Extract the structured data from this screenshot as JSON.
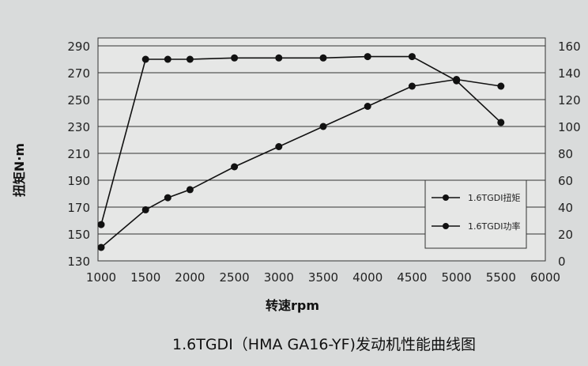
{
  "chart_data": {
    "type": "line",
    "title": "1.6TGDI（HMA GA16-YF)发动机性能曲线图",
    "xlabel": "转速rpm",
    "ylabel": "扭矩N·m",
    "y2label": "",
    "xlim": [
      1000,
      6000
    ],
    "ylim": [
      130,
      290
    ],
    "y2lim": [
      0,
      160
    ],
    "xticks": [
      1000,
      1500,
      2000,
      2500,
      3000,
      3500,
      4000,
      4500,
      5000,
      5500,
      6000
    ],
    "yticks": [
      130,
      150,
      170,
      190,
      210,
      230,
      250,
      270,
      290
    ],
    "y2ticks": [
      0,
      20,
      40,
      60,
      80,
      100,
      120,
      140,
      160
    ],
    "grid": "horizontal",
    "legend_placement": "bottom-right",
    "series": [
      {
        "name": "1.6TGDI扭矩",
        "axis": "left",
        "color": "#111111",
        "x": [
          1000,
          1500,
          1750,
          2000,
          2500,
          3000,
          3500,
          4000,
          4500,
          5000,
          5500
        ],
        "values": [
          157,
          280,
          280,
          280,
          281,
          281,
          281,
          282,
          282,
          264,
          233
        ]
      },
      {
        "name": "1.6TGDI功率",
        "axis": "right",
        "color": "#111111",
        "x": [
          1000,
          1500,
          1750,
          2000,
          2500,
          3000,
          3500,
          4000,
          4500,
          5000,
          5500
        ],
        "values": [
          10,
          38,
          47,
          53,
          70,
          85,
          100,
          115,
          130,
          135,
          130
        ]
      }
    ]
  }
}
